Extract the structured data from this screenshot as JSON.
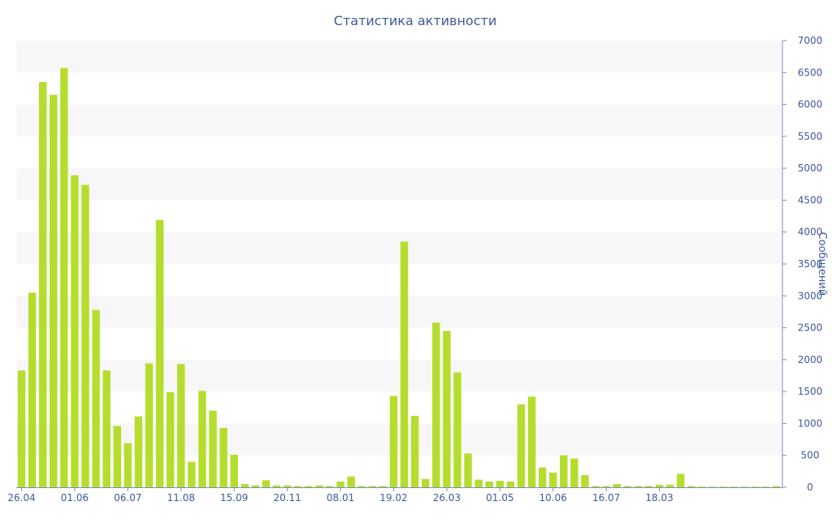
{
  "chart_data": {
    "type": "bar",
    "title": "Статистика активности",
    "xlabel": "",
    "ylabel": "Сообщений",
    "ylim": [
      0,
      7000
    ],
    "y_ticks": [
      0,
      500,
      1000,
      1500,
      2000,
      2500,
      3000,
      3500,
      4000,
      4500,
      5000,
      5500,
      6000,
      6500,
      7000
    ],
    "y_axis_side": "right",
    "x_tick_labels": [
      {
        "label": "26.04",
        "index": 0
      },
      {
        "label": "01.06",
        "index": 5
      },
      {
        "label": "06.07",
        "index": 10
      },
      {
        "label": "11.08",
        "index": 15
      },
      {
        "label": "15.09",
        "index": 20
      },
      {
        "label": "20.11",
        "index": 25
      },
      {
        "label": "08.01",
        "index": 30
      },
      {
        "label": "19.02",
        "index": 35
      },
      {
        "label": "26.03",
        "index": 40
      },
      {
        "label": "01.05",
        "index": 45
      },
      {
        "label": "10.06",
        "index": 50
      },
      {
        "label": "16.07",
        "index": 55
      },
      {
        "label": "18.03",
        "index": 60
      }
    ],
    "grid": true,
    "legend": "none",
    "bar_color": "#b5dd2e",
    "band_color": "#f7f7f7",
    "text_color": "#3d5a99",
    "axis_color": "#7a8fb8",
    "values": [
      1830,
      3050,
      6350,
      6150,
      6570,
      4890,
      4740,
      2780,
      1830,
      960,
      690,
      1110,
      1940,
      4190,
      1490,
      1930,
      400,
      1510,
      1200,
      930,
      510,
      50,
      30,
      110,
      30,
      30,
      20,
      20,
      30,
      20,
      90,
      170,
      20,
      20,
      20,
      1430,
      3850,
      1120,
      130,
      2580,
      2450,
      1800,
      530,
      120,
      90,
      100,
      90,
      1300,
      1420,
      310,
      230,
      500,
      450,
      190,
      20,
      20,
      50,
      20,
      20,
      20,
      40,
      40,
      210,
      20,
      10,
      10,
      10,
      10,
      10,
      10,
      10,
      20
    ]
  }
}
